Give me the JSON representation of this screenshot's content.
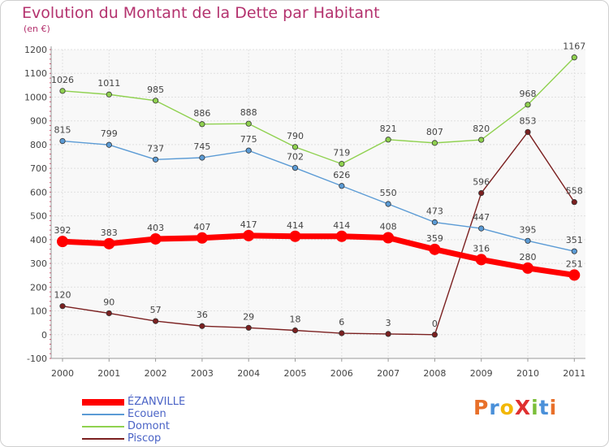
{
  "chart_data": {
    "type": "line",
    "title": "Evolution du Montant de la Dette par Habitant",
    "subtitle": "(en €)",
    "categories": [
      "2000",
      "2001",
      "2002",
      "2003",
      "2004",
      "2005",
      "2006",
      "2007",
      "2008",
      "2009",
      "2010",
      "2011"
    ],
    "y_ticks": [
      "-100",
      "0",
      "100",
      "200",
      "300",
      "400",
      "500",
      "600",
      "700",
      "800",
      "900",
      "1000",
      "1100",
      "1200"
    ],
    "ylim": [
      -100,
      1200
    ],
    "grid": true,
    "legend_position": "bottom-left",
    "series": [
      {
        "name": "ÉZANVILLE",
        "color": "#ff0000",
        "values": [
          392,
          383,
          403,
          407,
          417,
          414,
          414,
          408,
          359,
          316,
          280,
          251
        ]
      },
      {
        "name": "Ecouen",
        "color": "#5b9bd5",
        "values": [
          815,
          799,
          737,
          745,
          775,
          702,
          626,
          550,
          473,
          447,
          395,
          351
        ]
      },
      {
        "name": "Domont",
        "color": "#8fd14f",
        "values": [
          1026,
          1011,
          985,
          886,
          888,
          790,
          719,
          821,
          807,
          820,
          968,
          1167
        ]
      },
      {
        "name": "Piscop",
        "color": "#7b2020",
        "values": [
          120,
          90,
          57,
          36,
          29,
          18,
          6,
          3,
          0,
          596,
          853,
          558
        ]
      }
    ]
  },
  "logo": {
    "text": "ProXiti",
    "letter_colors": [
      "#e8702a",
      "#4a90d9",
      "#f2b705",
      "#e03030",
      "#7bbf3a",
      "#4a90d9",
      "#e8702a"
    ]
  }
}
